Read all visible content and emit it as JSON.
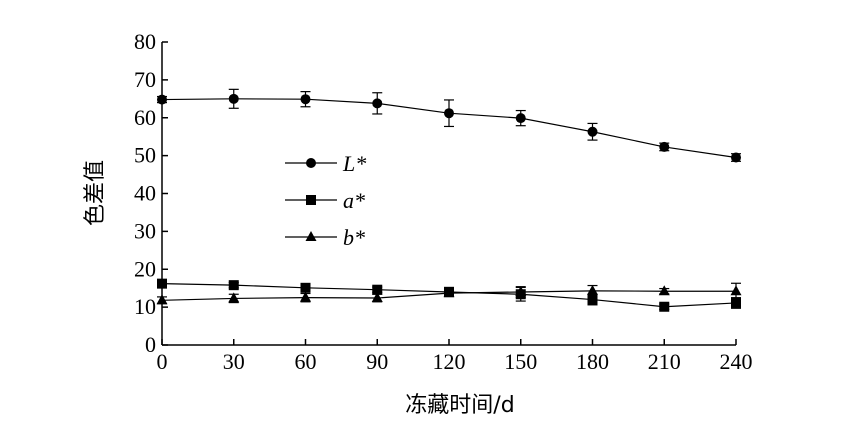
{
  "chart_data": {
    "type": "line",
    "title": "",
    "xlabel": "冻藏时间/d",
    "ylabel": "色差值",
    "x": [
      0,
      30,
      60,
      90,
      120,
      150,
      180,
      210,
      240
    ],
    "xlim": [
      0,
      240
    ],
    "ylim": [
      0,
      80
    ],
    "xticks": [
      "0",
      "30",
      "60",
      "90",
      "120",
      "150",
      "180",
      "210",
      "240"
    ],
    "yticks": [
      "0",
      "10",
      "20",
      "30",
      "40",
      "50",
      "60",
      "70",
      "80"
    ],
    "grid": false,
    "legend_position": "center-left",
    "series": [
      {
        "name": "L*",
        "marker": "circle",
        "values": [
          64.8,
          65.0,
          64.9,
          63.8,
          61.2,
          59.9,
          56.3,
          52.3,
          49.5
        ],
        "errors": [
          0.8,
          2.5,
          2.0,
          2.8,
          3.5,
          2.0,
          2.2,
          1.0,
          1.0
        ]
      },
      {
        "name": "a*",
        "marker": "square",
        "values": [
          16.2,
          15.8,
          15.1,
          14.6,
          14.0,
          13.4,
          12.0,
          10.1,
          11.1
        ],
        "errors": [
          0.7,
          0.7,
          0.7,
          0.7,
          1.2,
          1.8,
          1.4,
          0.7,
          1.4
        ]
      },
      {
        "name": "b*",
        "marker": "triangle",
        "values": [
          11.8,
          12.3,
          12.5,
          12.4,
          13.7,
          14.0,
          14.3,
          14.2,
          14.2
        ],
        "errors": [
          0.9,
          1.1,
          1.1,
          1.0,
          0.9,
          1.4,
          1.4,
          0.7,
          2.1
        ]
      }
    ]
  },
  "colors": {
    "ink": "#000000",
    "background": "#ffffff"
  }
}
